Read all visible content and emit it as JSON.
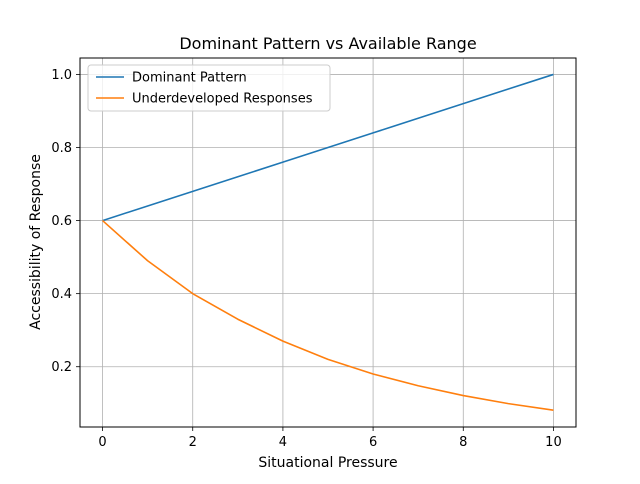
{
  "chart_data": {
    "type": "line",
    "title": "Dominant Pattern vs Available Range",
    "xlabel": "Situational Pressure",
    "ylabel": "Accessibility of Response",
    "xlim": [
      -0.5,
      10.5
    ],
    "ylim": [
      0.035,
      1.045
    ],
    "xticks": [
      0,
      2,
      4,
      6,
      8,
      10
    ],
    "xtick_labels": [
      "0",
      "2",
      "4",
      "6",
      "8",
      "10"
    ],
    "yticks": [
      0.2,
      0.4,
      0.6,
      0.8,
      1.0
    ],
    "ytick_labels": [
      "0.2",
      "0.4",
      "0.6",
      "0.8",
      "1.0"
    ],
    "grid": true,
    "legend_position": "upper-left",
    "series": [
      {
        "name": "Dominant Pattern",
        "color": "#1f77b4",
        "x": [
          0,
          1,
          2,
          3,
          4,
          5,
          6,
          7,
          8,
          9,
          10
        ],
        "y": [
          0.6,
          0.64,
          0.68,
          0.72,
          0.76,
          0.8,
          0.84,
          0.88,
          0.92,
          0.96,
          1.0
        ]
      },
      {
        "name": "Underdeveloped Responses",
        "color": "#ff7f0e",
        "x": [
          0,
          1,
          2,
          3,
          4,
          5,
          6,
          7,
          8,
          9,
          10
        ],
        "y": [
          0.6,
          0.49,
          0.4,
          0.33,
          0.27,
          0.22,
          0.18,
          0.148,
          0.121,
          0.099,
          0.081
        ]
      }
    ]
  }
}
